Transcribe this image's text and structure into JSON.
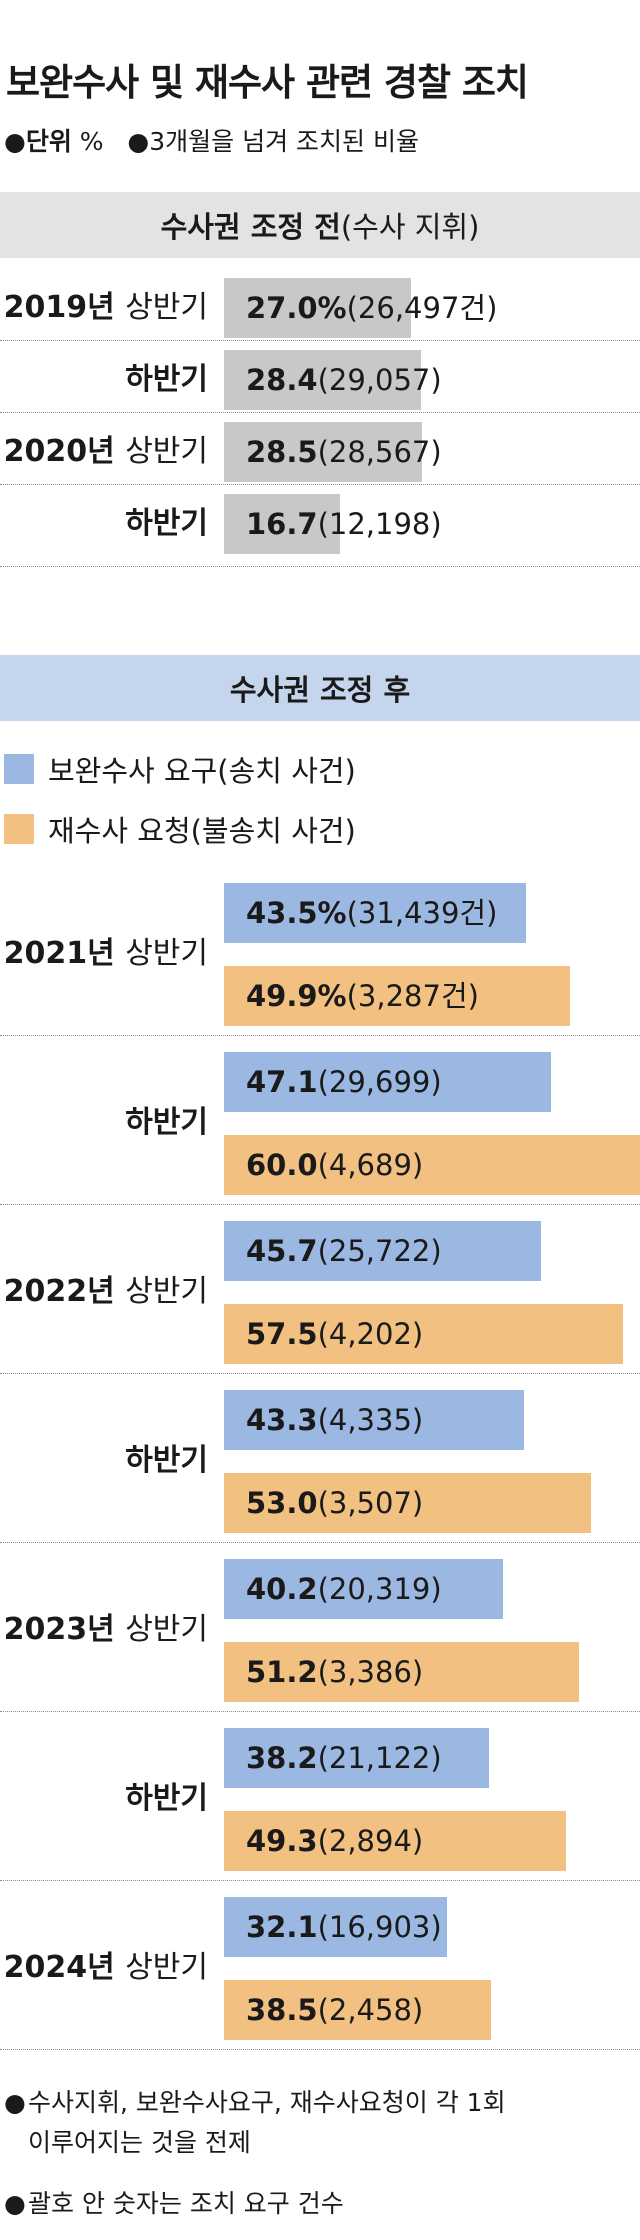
{
  "title": "보완수사 및 재수사 관련 경찰 조치",
  "unit": {
    "label": "단위",
    "value": "%",
    "desc": "3개월을 넘겨 조치된 비율"
  },
  "colors": {
    "before": "#c8c8c8",
    "supplement": "#9bb8e3",
    "reinvestigate": "#f2c182",
    "band_before": "#e3e3e3",
    "band_after": "#c5d5ee"
  },
  "chart_data": [
    {
      "type": "bar",
      "orientation": "horizontal",
      "title": "수사권 조정 전",
      "subtitle": "(수사 지휘)",
      "categories": [
        "2019년 상반기",
        "하반기",
        "2020년 상반기",
        "하반기"
      ],
      "series": [
        {
          "values": [
            27.0,
            28.4,
            28.5,
            16.7
          ],
          "counts": [
            "26,497",
            "29,057",
            "28,567",
            "12,198"
          ]
        }
      ],
      "xlim": [
        0,
        60
      ]
    },
    {
      "type": "bar",
      "orientation": "horizontal",
      "title": "수사권 조정 후",
      "categories": [
        "2021년 상반기",
        "하반기",
        "2022년 상반기",
        "하반기",
        "2023년 상반기",
        "하반기",
        "2024년 상반기"
      ],
      "legend": [
        "보완수사 요구(송치 사건)",
        "재수사 요청(불송치 사건)"
      ],
      "series": [
        {
          "name": "보완수사 요구(송치 사건)",
          "values": [
            43.5,
            47.1,
            45.7,
            43.3,
            40.2,
            38.2,
            32.1
          ],
          "counts": [
            "31,439",
            "29,699",
            "25,722",
            "4,335",
            "20,319",
            "21,122",
            "16,903"
          ]
        },
        {
          "name": "재수사 요청(불송치 사건)",
          "values": [
            49.9,
            60.0,
            57.5,
            53.0,
            51.2,
            49.3,
            38.5
          ],
          "counts": [
            "3,287",
            "4,689",
            "4,202",
            "3,507",
            "3,386",
            "2,894",
            "2,458"
          ]
        }
      ],
      "xlim": [
        0,
        60
      ]
    }
  ],
  "bar_labels": {
    "before": [
      "27.0%(26,497건)",
      "28.4(29,057)",
      "28.5(28,567)",
      "16.7(12,198)"
    ],
    "supplement": [
      "43.5%(31,439건)",
      "47.1(29,699)",
      "45.7(25,722)",
      "43.3(4,335)",
      "40.2(20,319)",
      "38.2(21,122)",
      "32.1(16,903)"
    ],
    "reinvestigate": [
      "49.9%(3,287건)",
      "60.0(4,689)",
      "57.5(4,202)",
      "53.0(3,507)",
      "51.2(3,386)",
      "49.3(2,894)",
      "38.5(2,458)"
    ]
  },
  "row_labels": {
    "before": [
      {
        "year": "2019년",
        "half": "상반기"
      },
      {
        "year": "",
        "half": "하반기"
      },
      {
        "year": "2020년",
        "half": "상반기"
      },
      {
        "year": "",
        "half": "하반기"
      }
    ],
    "after": [
      {
        "year": "2021년",
        "half": "상반기"
      },
      {
        "year": "",
        "half": "하반기"
      },
      {
        "year": "2022년",
        "half": "상반기"
      },
      {
        "year": "",
        "half": "하반기"
      },
      {
        "year": "2023년",
        "half": "상반기"
      },
      {
        "year": "",
        "half": "하반기"
      },
      {
        "year": "2024년",
        "half": "상반기"
      }
    ]
  },
  "notes": [
    [
      "수사지휘, 보완수사요구, 재수사요청이 각 1회",
      "이루어지는 것을 전제"
    ],
    [
      "괄호 안 숫자는 조치 요구 건수"
    ]
  ]
}
